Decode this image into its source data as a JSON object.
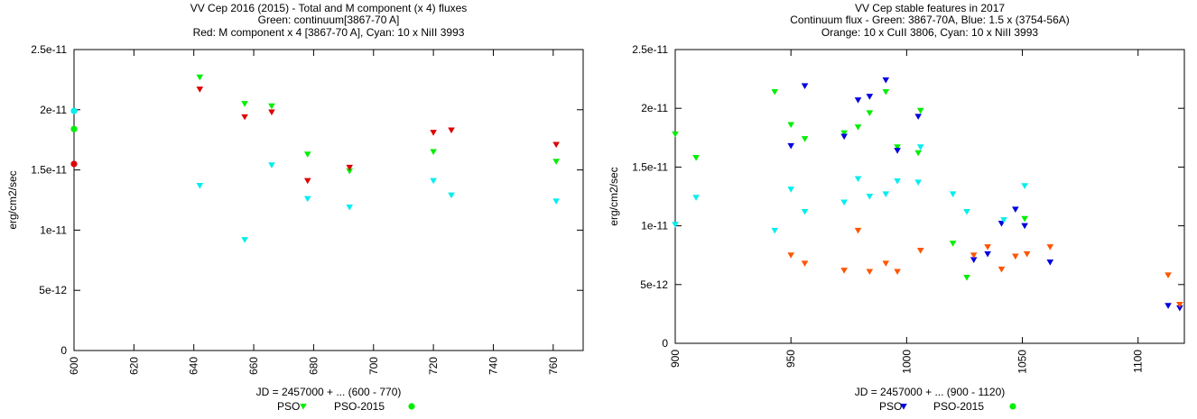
{
  "chart_data": [
    {
      "type": "scatter",
      "title_lines": [
        "VV Cep 2016 (2015) - Total and M component (x 4) fluxes",
        "Green: continuum[3867-70 A]",
        "Red: M component x 4 [3867-70 A], Cyan: 10 x NiII 3993"
      ],
      "xlabel": "JD = 2457000 + ... (600 - 770)",
      "ylabel": "erg/cm2/sec",
      "xlim": [
        600,
        770
      ],
      "ylim": [
        0,
        2.5e-11
      ],
      "xticks": [
        600,
        620,
        640,
        660,
        680,
        700,
        720,
        740,
        760
      ],
      "xtick_labels": [
        "600",
        "620",
        "640",
        "660",
        "680",
        "700",
        "720",
        "740",
        "760"
      ],
      "yticks": [
        0,
        5e-12,
        1e-11,
        1.5e-11,
        2e-11,
        2.5e-11
      ],
      "ytick_labels": [
        "0",
        "5e-12",
        "1e-11",
        "1.5e-11",
        "2e-11",
        "2.5e-11"
      ],
      "legend": [
        {
          "label": "PSO",
          "marker": "triangle-down",
          "color": "#00ee00"
        },
        {
          "label": "PSO-2015",
          "marker": "circle",
          "color": "#00ee00"
        }
      ],
      "series": [
        {
          "name": "Continuum 3867-70A (PSO)",
          "color": "#00ee00",
          "marker": "triangle-down",
          "x": [
            642,
            657,
            666,
            678,
            692,
            720,
            761
          ],
          "y": [
            2.27e-11,
            2.05e-11,
            2.03e-11,
            1.63e-11,
            1.49e-11,
            1.65e-11,
            1.57e-11
          ]
        },
        {
          "name": "M component x 4 (PSO)",
          "color": "#dd0000",
          "marker": "triangle-down",
          "x": [
            642,
            657,
            666,
            678,
            692,
            720,
            726,
            761
          ],
          "y": [
            2.17e-11,
            1.94e-11,
            1.98e-11,
            1.41e-11,
            1.52e-11,
            1.81e-11,
            1.83e-11,
            1.71e-11
          ]
        },
        {
          "name": "10 x NiII 3993 (PSO)",
          "color": "#00eeee",
          "marker": "triangle-down",
          "x": [
            642,
            657,
            666,
            678,
            692,
            720,
            726,
            761
          ],
          "y": [
            1.37e-11,
            9.2e-12,
            1.54e-11,
            1.26e-11,
            1.19e-11,
            1.41e-11,
            1.29e-11,
            1.24e-11
          ]
        },
        {
          "name": "Continuum (PSO-2015)",
          "color": "#00ee00",
          "marker": "circle",
          "x": [
            600
          ],
          "y": [
            1.84e-11
          ]
        },
        {
          "name": "M component (PSO-2015)",
          "color": "#dd0000",
          "marker": "circle",
          "x": [
            600
          ],
          "y": [
            1.55e-11
          ]
        },
        {
          "name": "NiII (PSO-2015)",
          "color": "#00eeee",
          "marker": "circle",
          "x": [
            600
          ],
          "y": [
            1.99e-11
          ]
        }
      ]
    },
    {
      "type": "scatter",
      "title_lines": [
        "VV Cep stable features in 2017",
        "Continuum flux - Green: 3867-70A, Blue: 1.5 x (3754-56A)",
        "Orange: 10 x CuII 3806, Cyan: 10 x NiII 3993"
      ],
      "xlabel": "JD = 2457000 + ... (900 - 1120)",
      "ylabel": "erg/cm2/sec",
      "xlim": [
        900,
        1120
      ],
      "ylim": [
        0,
        2.5e-11
      ],
      "xticks": [
        900,
        950,
        1000,
        1050,
        1100
      ],
      "xtick_labels": [
        "900",
        "950",
        "1000",
        "1050",
        "1100"
      ],
      "yticks": [
        0,
        5e-12,
        1e-11,
        1.5e-11,
        2e-11,
        2.5e-11
      ],
      "ytick_labels": [
        "0",
        "5e-12",
        "1e-11",
        "1.5e-11",
        "2e-11",
        "2.5e-11"
      ],
      "legend": [
        {
          "label": "PSO",
          "marker": "triangle-down",
          "color": "#0000dd"
        },
        {
          "label": "PSO-2015",
          "marker": "circle",
          "color": "#00ee00"
        }
      ],
      "series": [
        {
          "name": "Continuum 3867-70A",
          "color": "#00ee00",
          "marker": "triangle-down",
          "x": [
            900,
            909,
            943,
            950,
            956,
            973,
            979,
            984,
            991,
            996,
            1005,
            1006,
            1020,
            1026,
            1051
          ],
          "y": [
            1.78e-11,
            1.58e-11,
            2.14e-11,
            1.86e-11,
            1.74e-11,
            1.79e-11,
            1.84e-11,
            1.96e-11,
            2.14e-11,
            1.67e-11,
            1.62e-11,
            1.98e-11,
            8.5e-12,
            5.6e-12,
            1.06e-11
          ]
        },
        {
          "name": "1.5 x (3754-56A)",
          "color": "#0000dd",
          "marker": "triangle-down",
          "x": [
            950,
            956,
            973,
            979,
            984,
            991,
            996,
            1005,
            1029,
            1035,
            1041,
            1047,
            1051,
            1062,
            1113,
            1118
          ],
          "y": [
            1.68e-11,
            2.19e-11,
            1.76e-11,
            2.07e-11,
            2.1e-11,
            2.24e-11,
            1.64e-11,
            1.93e-11,
            7.1e-12,
            7.6e-12,
            1.02e-11,
            1.14e-11,
            1e-11,
            6.9e-12,
            3.2e-12,
            3e-12
          ]
        },
        {
          "name": "10 x CuII 3806",
          "color": "#ff5500",
          "marker": "triangle-down",
          "x": [
            950,
            956,
            973,
            979,
            984,
            991,
            996,
            1006,
            1029,
            1035,
            1041,
            1047,
            1052,
            1062,
            1113,
            1118
          ],
          "y": [
            7.5e-12,
            6.8e-12,
            6.2e-12,
            9.6e-12,
            6.1e-12,
            6.8e-12,
            6.1e-12,
            7.9e-12,
            7.5e-12,
            8.2e-12,
            6.3e-12,
            7.4e-12,
            7.6e-12,
            8.2e-12,
            5.8e-12,
            3.3e-12
          ]
        },
        {
          "name": "10 x NiII 3993",
          "color": "#00eeee",
          "marker": "triangle-down",
          "x": [
            900,
            909,
            943,
            950,
            956,
            973,
            979,
            984,
            991,
            996,
            1005,
            1006,
            1020,
            1026,
            1042,
            1051
          ],
          "y": [
            1.01e-11,
            1.24e-11,
            9.6e-12,
            1.31e-11,
            1.12e-11,
            1.2e-11,
            1.4e-11,
            1.25e-11,
            1.27e-11,
            1.38e-11,
            1.37e-11,
            1.67e-11,
            1.27e-11,
            1.12e-11,
            1.05e-11,
            1.34e-11
          ]
        }
      ]
    }
  ]
}
